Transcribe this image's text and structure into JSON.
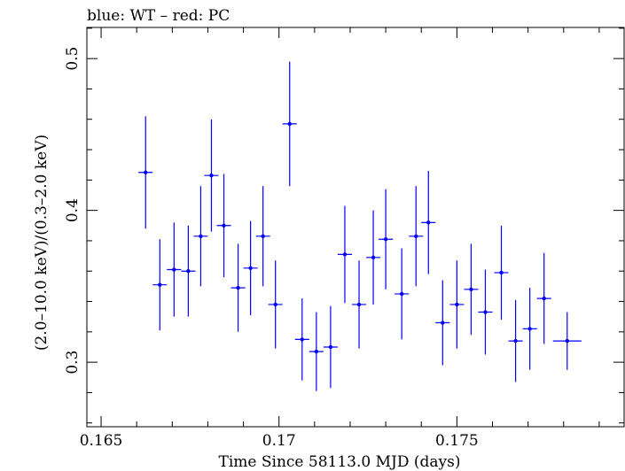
{
  "chart_data": {
    "type": "scatter",
    "title": "blue: WT – red: PC",
    "xlabel": "Time Since 58113.0 MJD (days)",
    "ylabel": "(2.0–10.0 keV)/(0.3–2.0 keV)",
    "xlim": [
      0.1646,
      0.1797
    ],
    "ylim": [
      0.2575,
      0.5205
    ],
    "x_ticks": [
      0.165,
      0.17,
      0.175
    ],
    "x_tick_labels": [
      "0.165",
      "0.17",
      "0.175"
    ],
    "y_ticks": [
      0.3,
      0.4,
      0.5
    ],
    "y_tick_labels": [
      "0.3",
      "0.4",
      "0.5"
    ],
    "grid": false,
    "series": [
      {
        "color": "#0000ff",
        "points": [
          {
            "x": 0.16625,
            "xerr": 0.0002,
            "y": 0.425,
            "yerr": 0.037
          },
          {
            "x": 0.16665,
            "xerr": 0.0002,
            "y": 0.351,
            "yerr": 0.03
          },
          {
            "x": 0.16705,
            "xerr": 0.0002,
            "y": 0.361,
            "yerr": 0.031
          },
          {
            "x": 0.16745,
            "xerr": 0.0002,
            "y": 0.36,
            "yerr": 0.03
          },
          {
            "x": 0.1678,
            "xerr": 0.0002,
            "y": 0.383,
            "yerr": 0.033
          },
          {
            "x": 0.1681,
            "xerr": 0.0002,
            "y": 0.423,
            "yerr": 0.037
          },
          {
            "x": 0.16845,
            "xerr": 0.0002,
            "y": 0.39,
            "yerr": 0.034
          },
          {
            "x": 0.16885,
            "xerr": 0.0002,
            "y": 0.349,
            "yerr": 0.029
          },
          {
            "x": 0.1692,
            "xerr": 0.0002,
            "y": 0.362,
            "yerr": 0.031
          },
          {
            "x": 0.16955,
            "xerr": 0.0002,
            "y": 0.383,
            "yerr": 0.033
          },
          {
            "x": 0.1699,
            "xerr": 0.0002,
            "y": 0.338,
            "yerr": 0.029
          },
          {
            "x": 0.1703,
            "xerr": 0.0002,
            "y": 0.457,
            "yerr": 0.041
          },
          {
            "x": 0.17065,
            "xerr": 0.0002,
            "y": 0.315,
            "yerr": 0.027
          },
          {
            "x": 0.17105,
            "xerr": 0.0002,
            "y": 0.307,
            "yerr": 0.026
          },
          {
            "x": 0.17145,
            "xerr": 0.0002,
            "y": 0.31,
            "yerr": 0.027
          },
          {
            "x": 0.17185,
            "xerr": 0.0002,
            "y": 0.371,
            "yerr": 0.032
          },
          {
            "x": 0.17225,
            "xerr": 0.0002,
            "y": 0.338,
            "yerr": 0.029
          },
          {
            "x": 0.17265,
            "xerr": 0.0002,
            "y": 0.369,
            "yerr": 0.031
          },
          {
            "x": 0.173,
            "xerr": 0.0002,
            "y": 0.381,
            "yerr": 0.033
          },
          {
            "x": 0.17345,
            "xerr": 0.0002,
            "y": 0.345,
            "yerr": 0.03
          },
          {
            "x": 0.17385,
            "xerr": 0.0002,
            "y": 0.383,
            "yerr": 0.033
          },
          {
            "x": 0.1742,
            "xerr": 0.0002,
            "y": 0.392,
            "yerr": 0.034
          },
          {
            "x": 0.1746,
            "xerr": 0.0002,
            "y": 0.326,
            "yerr": 0.028
          },
          {
            "x": 0.175,
            "xerr": 0.0002,
            "y": 0.338,
            "yerr": 0.029
          },
          {
            "x": 0.1754,
            "xerr": 0.0002,
            "y": 0.348,
            "yerr": 0.03
          },
          {
            "x": 0.1758,
            "xerr": 0.0002,
            "y": 0.333,
            "yerr": 0.028
          },
          {
            "x": 0.17625,
            "xerr": 0.0002,
            "y": 0.359,
            "yerr": 0.031
          },
          {
            "x": 0.17665,
            "xerr": 0.0002,
            "y": 0.314,
            "yerr": 0.027
          },
          {
            "x": 0.17705,
            "xerr": 0.0002,
            "y": 0.322,
            "yerr": 0.027
          },
          {
            "x": 0.17745,
            "xerr": 0.0002,
            "y": 0.342,
            "yerr": 0.03
          },
          {
            "x": 0.1781,
            "xerr": 0.0004,
            "y": 0.314,
            "yerr": 0.019
          }
        ]
      }
    ]
  }
}
